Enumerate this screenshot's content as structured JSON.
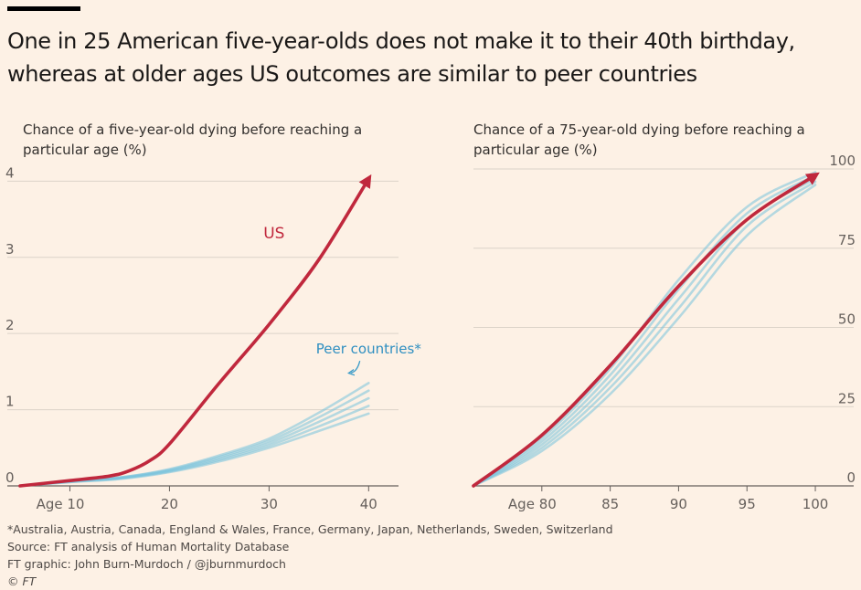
{
  "headline": "One in 25 American five-year-olds does not make it to their 40th birthday, whereas at older ages US outcomes are similar to peer countries",
  "colors": {
    "background": "#fdf1e5",
    "us": "#c0283d",
    "peer": "#79c2dc",
    "grid": "#dcd3c9"
  },
  "footer": {
    "note": "*Australia, Austria, Canada, England & Wales, France, Germany, Japan, Netherlands, Sweden, Switzerland",
    "source": "Source: FT analysis of Human Mortality Database",
    "credit": "FT graphic: John Burn-Murdoch / @jburnmurdoch",
    "copyright": "© FT"
  },
  "chart_data": [
    {
      "type": "line",
      "subtitle": "Chance of a five-year-old dying before reaching a particular age (%)",
      "x_ticks": [
        "Age 10",
        "20",
        "30",
        "40"
      ],
      "x_tick_values": [
        10,
        20,
        30,
        40
      ],
      "y_ticks": [
        "0",
        "1",
        "2",
        "3",
        "4"
      ],
      "y_tick_values": [
        0,
        1,
        2,
        3,
        4
      ],
      "xlim": [
        5,
        43
      ],
      "ylim": [
        0,
        4.1
      ],
      "grid": "horizontal",
      "y_axis_side": "left",
      "annotations": [
        {
          "text": "US",
          "series": "US"
        },
        {
          "text": "Peer countries*",
          "series": "peer"
        }
      ],
      "series": [
        {
          "name": "US",
          "color": "#c0283d",
          "x": [
            5,
            10,
            14,
            16,
            18,
            20,
            25,
            30,
            35,
            40
          ],
          "values": [
            0,
            0.07,
            0.13,
            0.2,
            0.33,
            0.55,
            1.35,
            2.12,
            2.97,
            4.03
          ]
        },
        {
          "color": "#79c2dc",
          "x": [
            5,
            10,
            15,
            20,
            25,
            30,
            35,
            40
          ],
          "values": [
            0,
            0.06,
            0.11,
            0.22,
            0.4,
            0.62,
            0.96,
            1.35
          ]
        },
        {
          "color": "#79c2dc",
          "x": [
            5,
            10,
            15,
            20,
            25,
            30,
            35,
            40
          ],
          "values": [
            0,
            0.06,
            0.11,
            0.21,
            0.38,
            0.59,
            0.9,
            1.25
          ]
        },
        {
          "color": "#79c2dc",
          "x": [
            5,
            10,
            15,
            20,
            25,
            30,
            35,
            40
          ],
          "values": [
            0,
            0.06,
            0.1,
            0.2,
            0.36,
            0.56,
            0.84,
            1.15
          ]
        },
        {
          "color": "#79c2dc",
          "x": [
            5,
            10,
            15,
            20,
            25,
            30,
            35,
            40
          ],
          "values": [
            0,
            0.05,
            0.1,
            0.19,
            0.34,
            0.53,
            0.78,
            1.05
          ]
        },
        {
          "color": "#79c2dc",
          "x": [
            5,
            10,
            15,
            20,
            25,
            30,
            35,
            40
          ],
          "values": [
            0,
            0.05,
            0.09,
            0.18,
            0.32,
            0.5,
            0.72,
            0.95
          ]
        }
      ]
    },
    {
      "type": "line",
      "subtitle": "Chance of a 75-year-old dying before reaching a particular age (%)",
      "x_ticks": [
        "Age 80",
        "85",
        "90",
        "95",
        "100"
      ],
      "x_tick_values": [
        80,
        85,
        90,
        95,
        100
      ],
      "y_ticks": [
        "0",
        "25",
        "50",
        "75",
        "100"
      ],
      "y_tick_values": [
        0,
        25,
        50,
        75,
        100
      ],
      "xlim": [
        75,
        101
      ],
      "ylim": [
        0,
        100
      ],
      "grid": "horizontal",
      "y_axis_side": "right",
      "series": [
        {
          "name": "US",
          "color": "#c0283d",
          "x": [
            75,
            80,
            85,
            90,
            95,
            100
          ],
          "values": [
            0,
            16,
            38,
            63,
            84,
            98
          ]
        },
        {
          "color": "#79c2dc",
          "x": [
            75,
            80,
            85,
            90,
            95,
            100
          ],
          "values": [
            0,
            15,
            37,
            65,
            88,
            99
          ]
        },
        {
          "color": "#79c2dc",
          "x": [
            75,
            80,
            85,
            90,
            95,
            100
          ],
          "values": [
            0,
            14,
            35,
            62,
            86,
            98
          ]
        },
        {
          "color": "#79c2dc",
          "x": [
            75,
            80,
            85,
            90,
            95,
            100
          ],
          "values": [
            0,
            13,
            33,
            59,
            84,
            97
          ]
        },
        {
          "color": "#79c2dc",
          "x": [
            75,
            80,
            85,
            90,
            95,
            100
          ],
          "values": [
            0,
            12,
            31,
            56,
            82,
            96
          ]
        },
        {
          "color": "#79c2dc",
          "x": [
            75,
            80,
            85,
            90,
            95,
            100
          ],
          "values": [
            0,
            11,
            29,
            53,
            79,
            95
          ]
        }
      ]
    }
  ]
}
